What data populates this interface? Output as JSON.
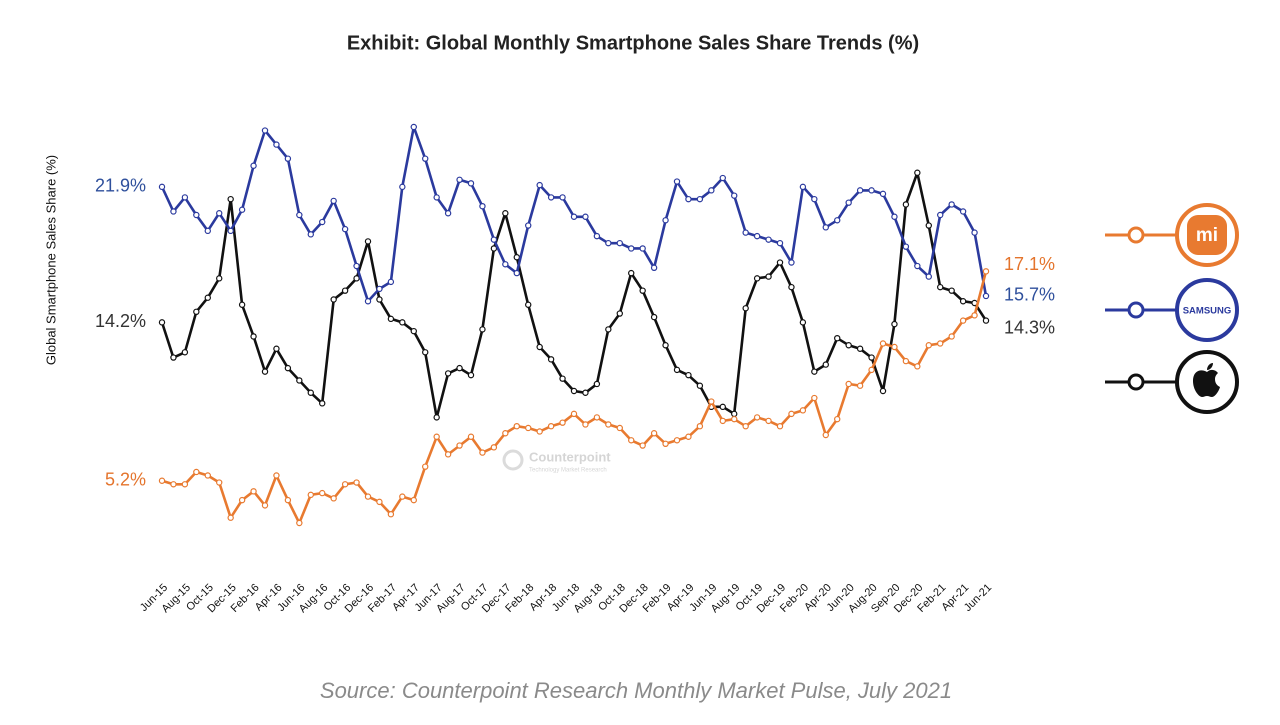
{
  "chart_data": {
    "type": "line",
    "title": "Exhibit: Global Monthly Smartphone Sales Share Trends (%)",
    "y_label": "Global Smartphone Sales Share (%)",
    "source": "Source: Counterpoint Research Monthly Market Pulse, July 2021",
    "watermark": {
      "name": "Counterpoint",
      "tagline": "Technology Market Research"
    },
    "categories": [
      "Jun-15",
      null,
      "Aug-15",
      null,
      "Oct-15",
      null,
      "Dec-15",
      null,
      "Feb-16",
      null,
      "Apr-16",
      null,
      "Jun-16",
      null,
      "Aug-16",
      null,
      "Oct-16",
      null,
      "Dec-16",
      null,
      "Feb-17",
      null,
      "Apr-17",
      null,
      "Jun-17",
      null,
      "Aug-17",
      null,
      "Oct-17",
      null,
      "Dec-17",
      null,
      "Feb-18",
      null,
      "Apr-18",
      null,
      "Jun-18",
      null,
      "Aug-18",
      null,
      "Oct-18",
      null,
      "Dec-18",
      null,
      "Feb-19",
      null,
      "Apr-19",
      null,
      "Jun-19",
      null,
      "Aug-19",
      null,
      "Oct-19",
      null,
      "Dec-19",
      null,
      "Feb-20",
      null,
      "Apr-20",
      null,
      "Jun-20",
      null,
      "Aug-20",
      null,
      "Sep-20",
      null,
      "Dec-20",
      null,
      "Feb-21",
      null,
      "Apr-21",
      null,
      "Jun-21"
    ],
    "series": [
      {
        "name": "mi",
        "color": "#e87a30",
        "label_color": "#e4742c",
        "values": [
          5.2,
          5.0,
          5.0,
          5.7,
          5.5,
          5.1,
          3.1,
          4.1,
          4.6,
          3.8,
          5.5,
          4.1,
          2.8,
          4.4,
          4.5,
          4.2,
          5.0,
          5.1,
          4.3,
          4.0,
          3.3,
          4.3,
          4.1,
          6.0,
          7.7,
          6.7,
          7.2,
          7.7,
          6.8,
          7.1,
          7.9,
          8.3,
          8.2,
          8.0,
          8.3,
          8.5,
          9.0,
          8.4,
          8.8,
          8.4,
          8.2,
          7.5,
          7.2,
          7.9,
          7.3,
          7.5,
          7.7,
          8.3,
          9.7,
          8.6,
          8.7,
          8.3,
          8.8,
          8.6,
          8.3,
          9.0,
          9.2,
          9.9,
          7.8,
          8.7,
          10.7,
          10.6,
          11.5,
          13.0,
          12.8,
          12.0,
          11.7,
          12.9,
          13.0,
          13.4,
          14.3,
          14.6,
          17.1
        ],
        "value_labels": [
          "5.2%",
          null,
          null,
          null,
          null,
          null,
          null,
          null,
          null,
          null,
          null,
          null,
          null,
          null,
          null,
          null,
          null,
          null,
          null,
          null,
          null,
          null,
          null,
          null,
          null,
          null,
          null,
          null,
          null,
          null,
          null,
          null,
          null,
          null,
          null,
          null,
          null,
          null,
          null,
          null,
          null,
          null,
          null,
          null,
          null,
          null,
          null,
          null,
          null,
          null,
          null,
          null,
          null,
          null,
          null,
          null,
          null,
          null,
          null,
          null,
          null,
          null,
          null,
          null,
          null,
          null,
          null,
          null,
          null,
          null,
          null,
          null,
          "17.1%"
        ]
      },
      {
        "name": "SAMSUNG",
        "color": "#2b3a9e",
        "label_color": "#2f509c",
        "values": [
          21.9,
          20.5,
          21.3,
          20.3,
          19.4,
          20.4,
          19.4,
          20.6,
          23.1,
          25.1,
          24.3,
          23.5,
          20.3,
          19.2,
          19.9,
          21.1,
          19.5,
          17.4,
          15.4,
          16.1,
          16.5,
          21.9,
          25.3,
          23.5,
          21.3,
          20.4,
          22.3,
          22.1,
          20.8,
          18.9,
          17.5,
          17.0,
          19.7,
          22.0,
          21.3,
          21.3,
          20.2,
          20.2,
          19.1,
          18.7,
          18.7,
          18.4,
          18.4,
          17.3,
          20.0,
          22.2,
          21.2,
          21.2,
          21.7,
          22.4,
          21.4,
          19.3,
          19.1,
          18.9,
          18.7,
          17.6,
          21.9,
          21.2,
          19.6,
          20.0,
          21.0,
          21.7,
          21.7,
          21.5,
          20.2,
          18.5,
          17.4,
          16.8,
          20.3,
          20.9,
          20.5,
          19.3,
          15.7
        ],
        "value_labels": [
          "21.9%",
          null,
          null,
          null,
          null,
          null,
          null,
          null,
          null,
          null,
          null,
          null,
          null,
          null,
          null,
          null,
          null,
          null,
          null,
          null,
          null,
          null,
          null,
          null,
          null,
          null,
          null,
          null,
          null,
          null,
          null,
          null,
          null,
          null,
          null,
          null,
          null,
          null,
          null,
          null,
          null,
          null,
          null,
          null,
          null,
          null,
          null,
          null,
          null,
          null,
          null,
          null,
          null,
          null,
          null,
          null,
          null,
          null,
          null,
          null,
          null,
          null,
          null,
          null,
          null,
          null,
          null,
          null,
          null,
          null,
          null,
          null,
          "15.7%"
        ]
      },
      {
        "color": "#111111",
        "label_color": "#333333",
        "values": [
          14.2,
          12.2,
          12.5,
          14.8,
          15.6,
          16.7,
          21.2,
          15.2,
          13.4,
          11.4,
          12.7,
          11.6,
          10.9,
          10.2,
          9.6,
          15.5,
          16.0,
          16.7,
          18.8,
          15.5,
          14.4,
          14.2,
          13.7,
          12.5,
          8.8,
          11.3,
          11.6,
          11.2,
          13.8,
          18.4,
          20.4,
          17.9,
          15.2,
          12.8,
          12.1,
          11.0,
          10.3,
          10.2,
          10.7,
          13.8,
          14.7,
          17.0,
          16.0,
          14.5,
          12.9,
          11.5,
          11.2,
          10.6,
          9.4,
          9.4,
          9.0,
          15.0,
          16.7,
          16.8,
          17.6,
          16.2,
          14.2,
          11.4,
          11.8,
          13.3,
          12.9,
          12.7,
          12.2,
          10.3,
          14.1,
          20.9,
          22.7,
          19.7,
          16.2,
          16.0,
          15.4,
          15.3,
          14.3
        ],
        "value_labels": [
          "14.2%",
          null,
          null,
          null,
          null,
          null,
          null,
          null,
          null,
          null,
          null,
          null,
          null,
          null,
          null,
          null,
          null,
          null,
          null,
          null,
          null,
          null,
          null,
          null,
          null,
          null,
          null,
          null,
          null,
          null,
          null,
          null,
          null,
          null,
          null,
          null,
          null,
          null,
          null,
          null,
          null,
          null,
          null,
          null,
          null,
          null,
          null,
          null,
          null,
          null,
          null,
          null,
          null,
          null,
          null,
          null,
          null,
          null,
          null,
          null,
          null,
          null,
          null,
          null,
          null,
          null,
          null,
          null,
          null,
          null,
          null,
          null,
          "14.3%"
        ]
      }
    ]
  }
}
